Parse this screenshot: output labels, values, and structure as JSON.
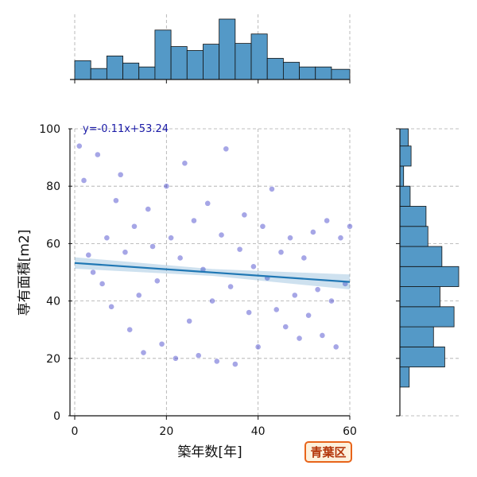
{
  "chart_data": {
    "type": "scatter",
    "xlabel": "築年数[年]",
    "ylabel": "専有面積[m2]",
    "xlim": [
      0,
      60
    ],
    "ylim": [
      0,
      100
    ],
    "xticks": [
      0,
      20,
      40,
      60
    ],
    "yticks": [
      0,
      20,
      40,
      60,
      80,
      100
    ],
    "grid": true,
    "regression": {
      "label": "y=-0.11x+53.24",
      "slope": -0.11,
      "intercept": 53.24,
      "color": "#1f77b4"
    },
    "point_color": "#3a3ac8",
    "sample_points": [
      [
        1,
        94
      ],
      [
        2,
        82
      ],
      [
        3,
        56
      ],
      [
        4,
        50
      ],
      [
        5,
        91
      ],
      [
        6,
        46
      ],
      [
        7,
        62
      ],
      [
        8,
        38
      ],
      [
        9,
        75
      ],
      [
        10,
        84
      ],
      [
        11,
        57
      ],
      [
        12,
        30
      ],
      [
        13,
        66
      ],
      [
        14,
        42
      ],
      [
        15,
        22
      ],
      [
        16,
        72
      ],
      [
        17,
        59
      ],
      [
        18,
        47
      ],
      [
        19,
        25
      ],
      [
        20,
        80
      ],
      [
        21,
        62
      ],
      [
        22,
        20
      ],
      [
        23,
        55
      ],
      [
        24,
        88
      ],
      [
        25,
        33
      ],
      [
        26,
        68
      ],
      [
        27,
        21
      ],
      [
        28,
        51
      ],
      [
        29,
        74
      ],
      [
        30,
        40
      ],
      [
        31,
        19
      ],
      [
        32,
        63
      ],
      [
        33,
        93
      ],
      [
        34,
        45
      ],
      [
        35,
        18
      ],
      [
        36,
        58
      ],
      [
        37,
        70
      ],
      [
        38,
        36
      ],
      [
        39,
        52
      ],
      [
        40,
        24
      ],
      [
        41,
        66
      ],
      [
        42,
        48
      ],
      [
        43,
        79
      ],
      [
        44,
        37
      ],
      [
        45,
        57
      ],
      [
        46,
        31
      ],
      [
        47,
        62
      ],
      [
        48,
        42
      ],
      [
        49,
        27
      ],
      [
        50,
        55
      ],
      [
        51,
        35
      ],
      [
        52,
        64
      ],
      [
        53,
        44
      ],
      [
        54,
        28
      ],
      [
        55,
        68
      ],
      [
        56,
        40
      ],
      [
        57,
        24
      ],
      [
        58,
        62
      ],
      [
        59,
        46
      ],
      [
        60,
        66
      ]
    ],
    "x_histogram": {
      "bins": [
        0,
        3.5,
        7,
        10.5,
        14,
        17.5,
        21,
        24.5,
        28,
        31.5,
        35,
        38.5,
        42,
        45.5,
        49,
        52.5,
        56,
        60
      ],
      "counts": [
        24,
        14,
        30,
        21,
        16,
        63,
        42,
        37,
        45,
        77,
        46,
        58,
        27,
        22,
        16,
        16,
        13
      ]
    },
    "y_histogram": {
      "bins": [
        10,
        17,
        24,
        31,
        38,
        45,
        52,
        59,
        66,
        73,
        80,
        87,
        94,
        100
      ],
      "counts": [
        10,
        48,
        36,
        58,
        43,
        63,
        45,
        30,
        28,
        11,
        4,
        12,
        9
      ]
    }
  },
  "badge_text": "青葉区"
}
